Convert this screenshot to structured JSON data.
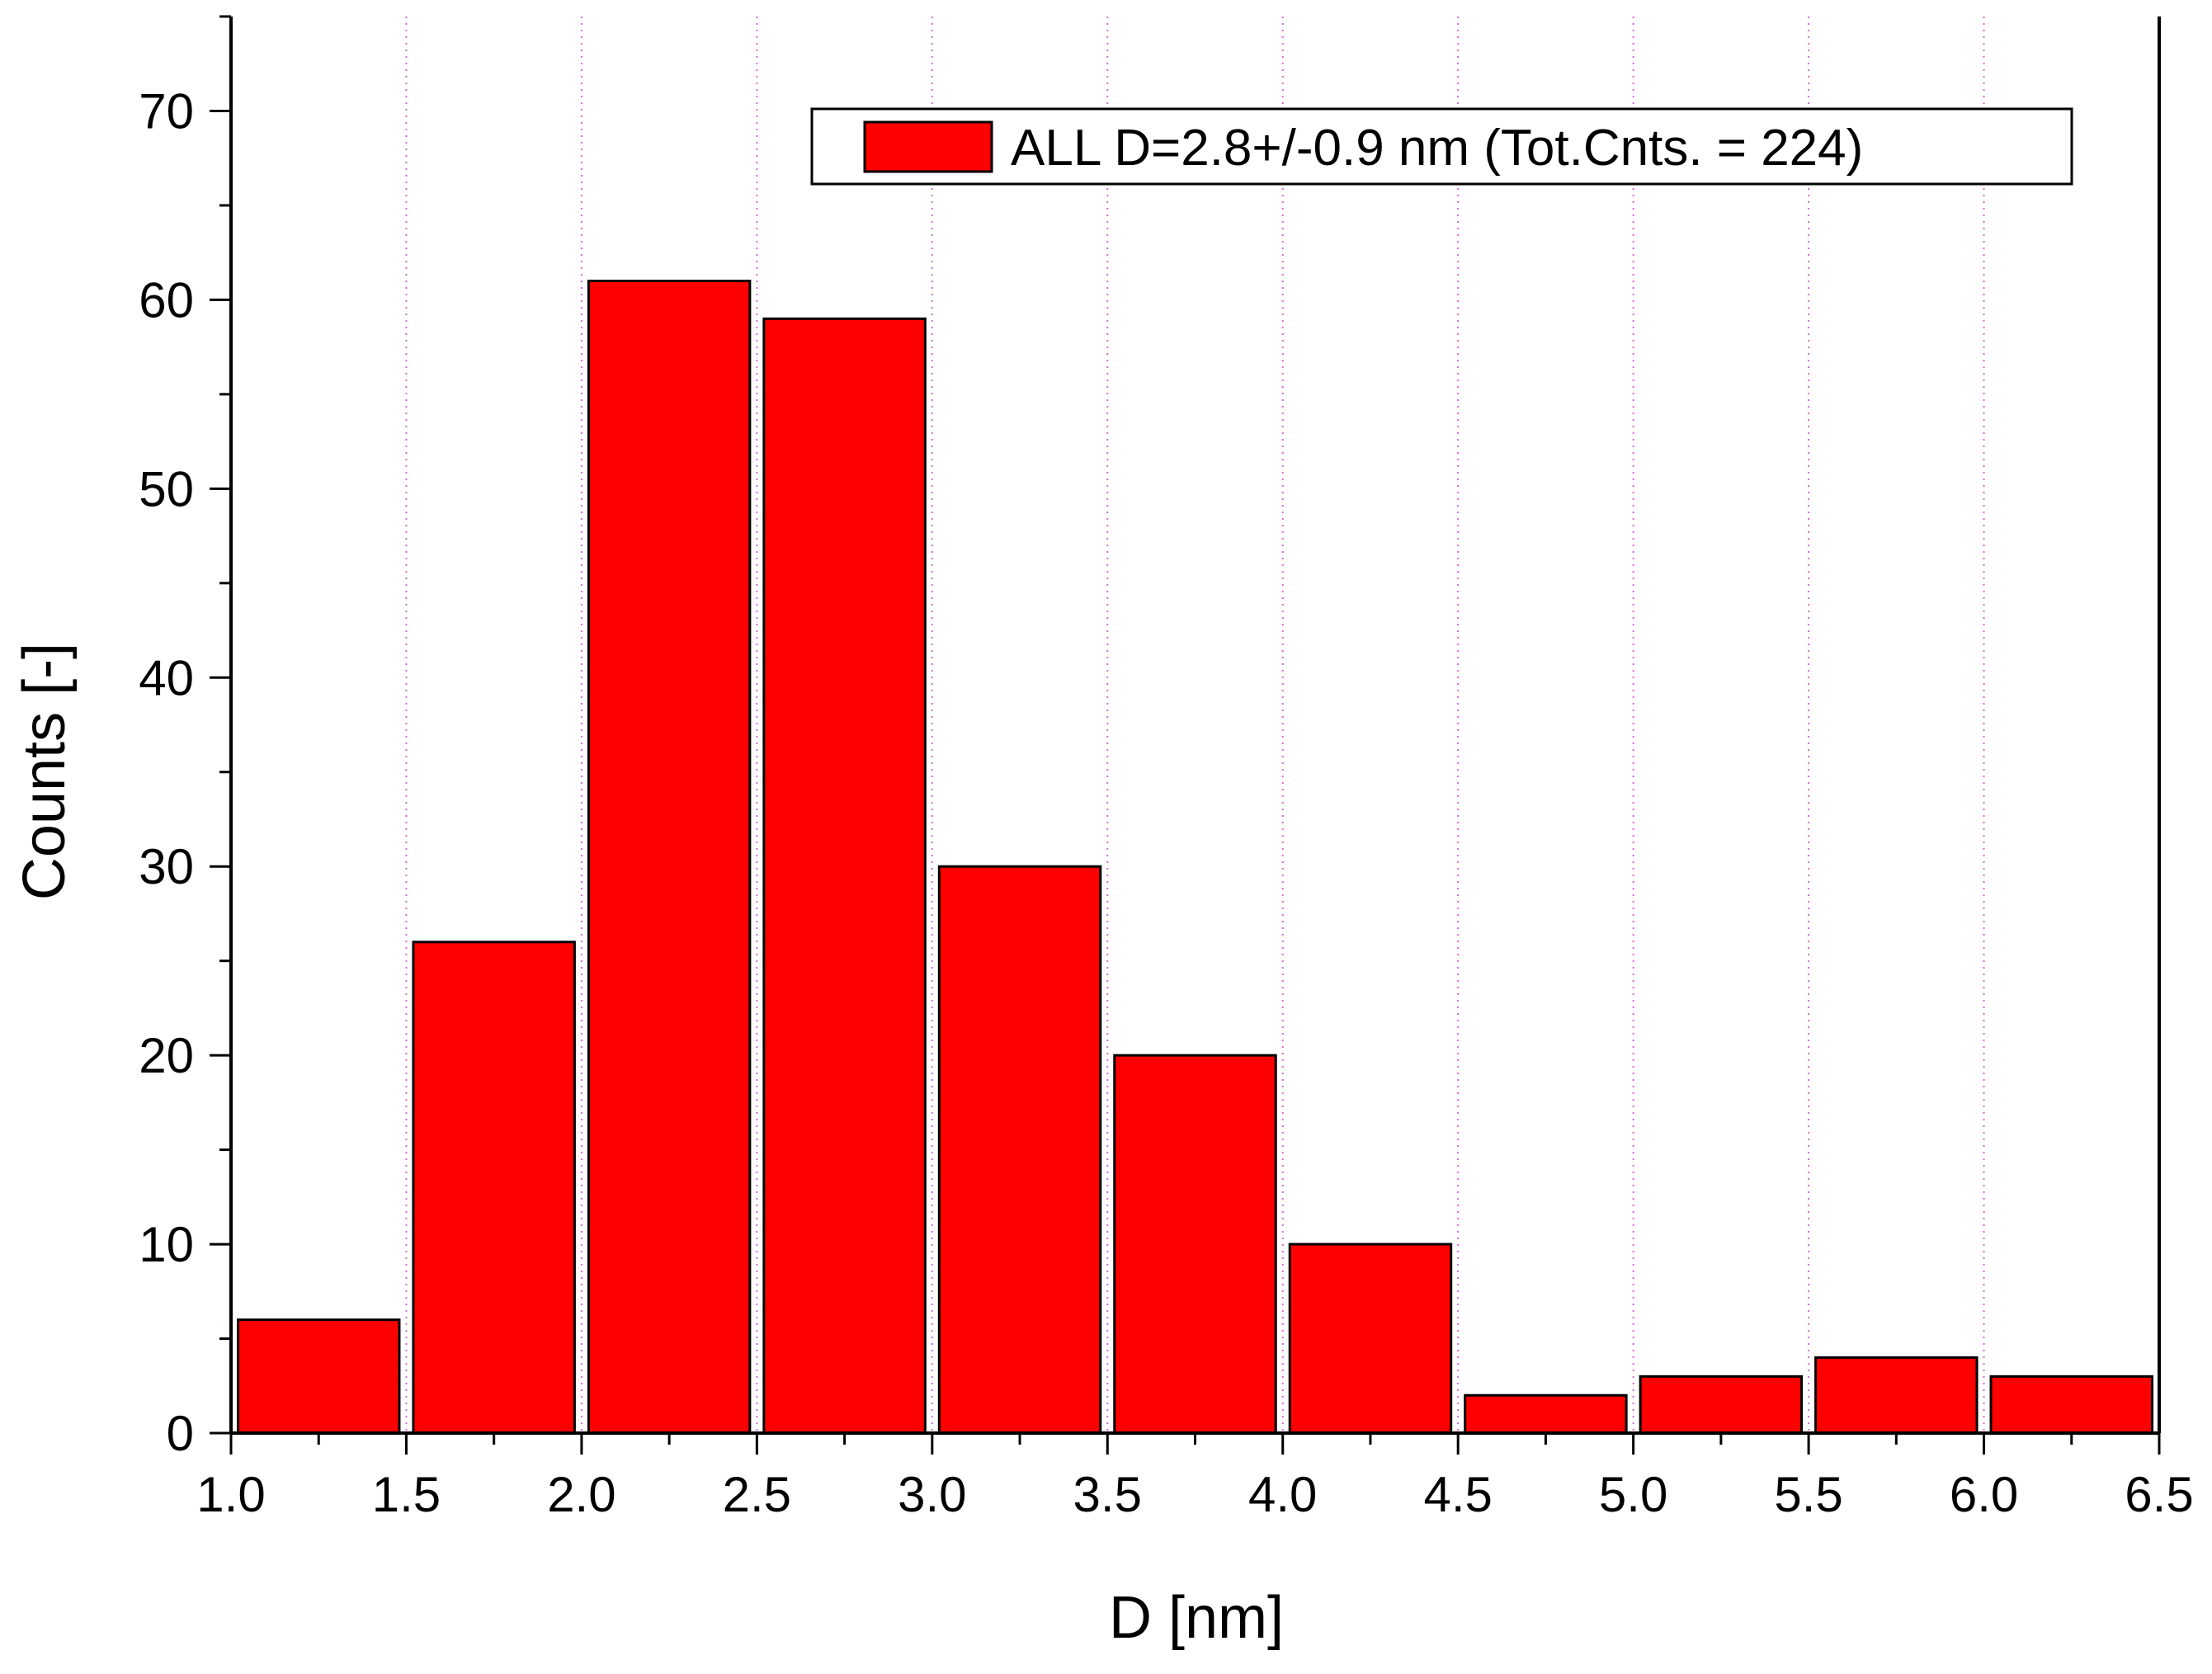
{
  "chart_data": {
    "type": "bar",
    "x_label": "D [nm]",
    "y_label": "Counts [-]",
    "x_range": [
      1.0,
      6.5
    ],
    "y_range": [
      0,
      75
    ],
    "x_ticks": [
      "1.0",
      "1.5",
      "2.0",
      "2.5",
      "3.0",
      "3.5",
      "4.0",
      "4.5",
      "5.0",
      "5.5",
      "6.0",
      "6.5"
    ],
    "y_ticks": [
      "0",
      "10",
      "20",
      "30",
      "40",
      "50",
      "60",
      "70"
    ],
    "grid": "vertical dotted at major x ticks",
    "legend_position": "top-right",
    "series": [
      {
        "name": "ALL D=2.8+/-0.9 nm (Tot.Cnts. = 224)",
        "color": "#ff0000",
        "bins": [
          {
            "from": 1.0,
            "to": 1.5,
            "value": 6
          },
          {
            "from": 1.5,
            "to": 2.0,
            "value": 26
          },
          {
            "from": 2.0,
            "to": 2.5,
            "value": 61
          },
          {
            "from": 2.5,
            "to": 3.0,
            "value": 59
          },
          {
            "from": 3.0,
            "to": 3.5,
            "value": 30
          },
          {
            "from": 3.5,
            "to": 4.0,
            "value": 20
          },
          {
            "from": 4.0,
            "to": 4.5,
            "value": 10
          },
          {
            "from": 4.5,
            "to": 5.0,
            "value": 2
          },
          {
            "from": 5.0,
            "to": 5.5,
            "value": 3
          },
          {
            "from": 5.5,
            "to": 6.0,
            "value": 4
          },
          {
            "from": 6.0,
            "to": 6.5,
            "value": 3
          }
        ]
      }
    ]
  }
}
